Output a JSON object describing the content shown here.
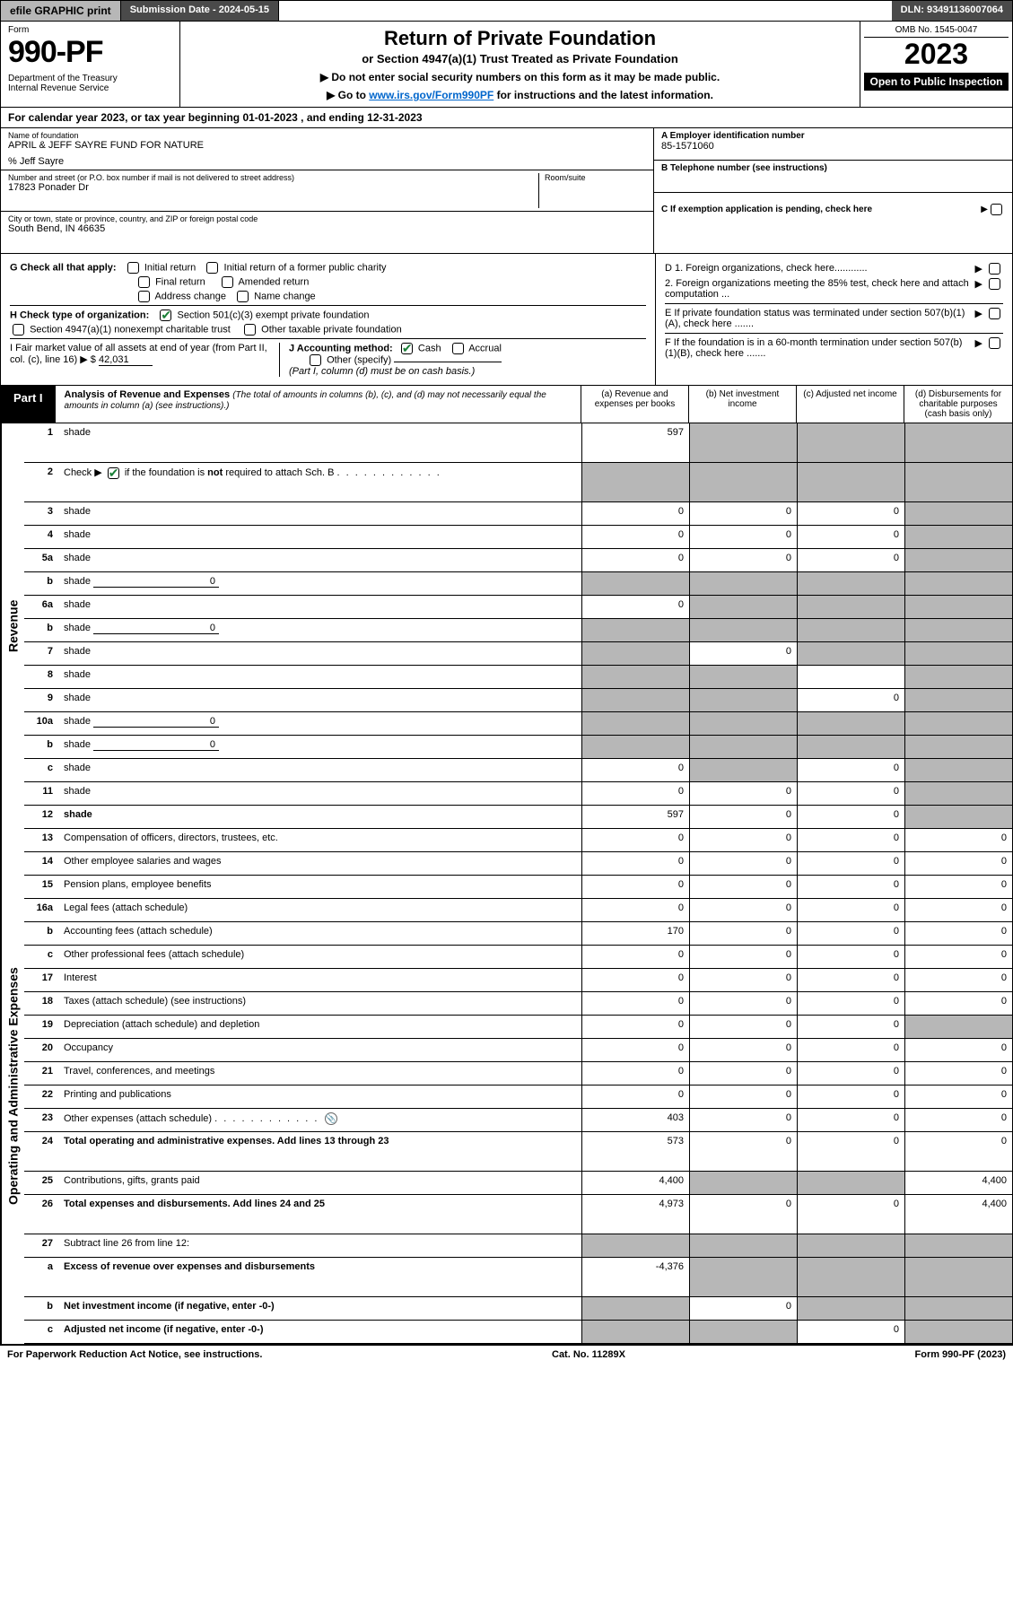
{
  "topbar": {
    "efile": "efile GRAPHIC print",
    "submission": "Submission Date - 2024-05-15",
    "dln": "DLN: 93491136007064"
  },
  "header": {
    "form_label": "Form",
    "form_no": "990-PF",
    "dept": "Department of the Treasury\nInternal Revenue Service",
    "title": "Return of Private Foundation",
    "sub1": "or Section 4947(a)(1) Trust Treated as Private Foundation",
    "sub2a": "▶ Do not enter social security numbers on this form as it may be made public.",
    "sub2b": "▶ Go to ",
    "link": "www.irs.gov/Form990PF",
    "sub2c": " for instructions and the latest information.",
    "omb": "OMB No. 1545-0047",
    "year": "2023",
    "inspect": "Open to Public Inspection"
  },
  "cal_year": "For calendar year 2023, or tax year beginning 01-01-2023                          , and ending 12-31-2023",
  "info": {
    "name_label": "Name of foundation",
    "name": "APRIL & JEFF SAYRE FUND FOR NATURE",
    "care_of": "% Jeff Sayre",
    "addr_label": "Number and street (or P.O. box number if mail is not delivered to street address)",
    "addr": "17823 Ponader Dr",
    "room_label": "Room/suite",
    "city_label": "City or town, state or province, country, and ZIP or foreign postal code",
    "city": "South Bend, IN  46635",
    "a_label": "A Employer identification number",
    "a_val": "85-1571060",
    "b_label": "B Telephone number (see instructions)",
    "c_label": "C If exemption application is pending, check here",
    "d1": "D 1. Foreign organizations, check here............",
    "d2": "2. Foreign organizations meeting the 85% test, check here and attach computation ...",
    "e": "E  If private foundation status was terminated under section 507(b)(1)(A), check here .......",
    "f": "F  If the foundation is in a 60-month termination under section 507(b)(1)(B), check here .......",
    "g": "G Check all that apply:",
    "g_opts": [
      "Initial return",
      "Initial return of a former public charity",
      "Final return",
      "Amended return",
      "Address change",
      "Name change"
    ],
    "h": "H Check type of organization:",
    "h1": "Section 501(c)(3) exempt private foundation",
    "h2": "Section 4947(a)(1) nonexempt charitable trust",
    "h3": "Other taxable private foundation",
    "i": "I Fair market value of all assets at end of year (from Part II, col. (c), line 16) ▶ $",
    "i_val": "42,031",
    "j": "J Accounting method:",
    "j_cash": "Cash",
    "j_accrual": "Accrual",
    "j_other": "Other (specify)",
    "j_note": "(Part I, column (d) must be on cash basis.)"
  },
  "part1": {
    "badge": "Part I",
    "title": "Analysis of Revenue and Expenses",
    "title_note": "(The total of amounts in columns (b), (c), and (d) may not necessarily equal the amounts in column (a) (see instructions).)",
    "cols": {
      "a": "(a)   Revenue and expenses per books",
      "b": "(b)   Net investment income",
      "c": "(c)   Adjusted net income",
      "d": "(d)  Disbursements for charitable purposes (cash basis only)"
    }
  },
  "sections": {
    "revenue": "Revenue",
    "expenses": "Operating and Administrative Expenses"
  },
  "rows": [
    {
      "n": "1",
      "d": "shade",
      "a": "597",
      "b": "shade",
      "c": "shade",
      "tall": true
    },
    {
      "n": "2",
      "d": "shade",
      "a": "shade",
      "b": "shade",
      "c": "shade",
      "tall": true,
      "checked": true
    },
    {
      "n": "3",
      "d": "shade",
      "a": "0",
      "b": "0",
      "c": "0"
    },
    {
      "n": "4",
      "d": "shade",
      "a": "0",
      "b": "0",
      "c": "0"
    },
    {
      "n": "5a",
      "d": "shade",
      "a": "0",
      "b": "0",
      "c": "0"
    },
    {
      "n": "b",
      "d": "shade",
      "inline": "0",
      "a": "shade",
      "b": "shade",
      "c": "shade"
    },
    {
      "n": "6a",
      "d": "shade",
      "a": "0",
      "b": "shade",
      "c": "shade"
    },
    {
      "n": "b",
      "d": "shade",
      "inline": "0",
      "a": "shade",
      "b": "shade",
      "c": "shade"
    },
    {
      "n": "7",
      "d": "shade",
      "a": "shade",
      "b": "0",
      "c": "shade"
    },
    {
      "n": "8",
      "d": "shade",
      "a": "shade",
      "b": "shade",
      "c": ""
    },
    {
      "n": "9",
      "d": "shade",
      "a": "shade",
      "b": "shade",
      "c": "0"
    },
    {
      "n": "10a",
      "d": "shade",
      "inline": "0",
      "a": "shade",
      "b": "shade",
      "c": "shade"
    },
    {
      "n": "b",
      "d": "shade",
      "inline": "0",
      "a": "shade",
      "b": "shade",
      "c": "shade"
    },
    {
      "n": "c",
      "d": "shade",
      "a": "0",
      "b": "shade",
      "c": "0"
    },
    {
      "n": "11",
      "d": "shade",
      "a": "0",
      "b": "0",
      "c": "0"
    },
    {
      "n": "12",
      "d": "shade",
      "bold": true,
      "a": "597",
      "b": "0",
      "c": "0"
    }
  ],
  "exp_rows": [
    {
      "n": "13",
      "d": "Compensation of officers, directors, trustees, etc.",
      "a": "0",
      "b": "0",
      "c": "0",
      "dd": "0"
    },
    {
      "n": "14",
      "d": "Other employee salaries and wages",
      "a": "0",
      "b": "0",
      "c": "0",
      "dd": "0"
    },
    {
      "n": "15",
      "d": "Pension plans, employee benefits",
      "a": "0",
      "b": "0",
      "c": "0",
      "dd": "0"
    },
    {
      "n": "16a",
      "d": "Legal fees (attach schedule)",
      "a": "0",
      "b": "0",
      "c": "0",
      "dd": "0"
    },
    {
      "n": "b",
      "d": "Accounting fees (attach schedule)",
      "a": "170",
      "b": "0",
      "c": "0",
      "dd": "0"
    },
    {
      "n": "c",
      "d": "Other professional fees (attach schedule)",
      "a": "0",
      "b": "0",
      "c": "0",
      "dd": "0"
    },
    {
      "n": "17",
      "d": "Interest",
      "a": "0",
      "b": "0",
      "c": "0",
      "dd": "0"
    },
    {
      "n": "18",
      "d": "Taxes (attach schedule) (see instructions)",
      "a": "0",
      "b": "0",
      "c": "0",
      "dd": "0"
    },
    {
      "n": "19",
      "d": "Depreciation (attach schedule) and depletion",
      "a": "0",
      "b": "0",
      "c": "0",
      "dd": "shade"
    },
    {
      "n": "20",
      "d": "Occupancy",
      "a": "0",
      "b": "0",
      "c": "0",
      "dd": "0"
    },
    {
      "n": "21",
      "d": "Travel, conferences, and meetings",
      "a": "0",
      "b": "0",
      "c": "0",
      "dd": "0"
    },
    {
      "n": "22",
      "d": "Printing and publications",
      "a": "0",
      "b": "0",
      "c": "0",
      "dd": "0"
    },
    {
      "n": "23",
      "d": "Other expenses (attach schedule)",
      "icon": true,
      "a": "403",
      "b": "0",
      "c": "0",
      "dd": "0"
    },
    {
      "n": "24",
      "d": "Total operating and administrative expenses. Add lines 13 through 23",
      "bold": true,
      "tall": true,
      "a": "573",
      "b": "0",
      "c": "0",
      "dd": "0"
    },
    {
      "n": "25",
      "d": "Contributions, gifts, grants paid",
      "a": "4,400",
      "b": "shade",
      "c": "shade",
      "dd": "4,400"
    },
    {
      "n": "26",
      "d": "Total expenses and disbursements. Add lines 24 and 25",
      "bold": true,
      "tall": true,
      "a": "4,973",
      "b": "0",
      "c": "0",
      "dd": "4,400"
    },
    {
      "n": "27",
      "d": "Subtract line 26 from line 12:",
      "a": "shade",
      "b": "shade",
      "c": "shade",
      "dd": "shade"
    },
    {
      "n": "a",
      "d": "Excess of revenue over expenses and disbursements",
      "bold": true,
      "tall": true,
      "a": "-4,376",
      "b": "shade",
      "c": "shade",
      "dd": "shade"
    },
    {
      "n": "b",
      "d": "Net investment income (if negative, enter -0-)",
      "bold": true,
      "a": "shade",
      "b": "0",
      "c": "shade",
      "dd": "shade"
    },
    {
      "n": "c",
      "d": "Adjusted net income (if negative, enter -0-)",
      "bold": true,
      "a": "shade",
      "b": "shade",
      "c": "0",
      "dd": "shade"
    }
  ],
  "footer": {
    "left": "For Paperwork Reduction Act Notice, see instructions.",
    "mid": "Cat. No. 11289X",
    "right": "Form 990-PF (2023)"
  }
}
